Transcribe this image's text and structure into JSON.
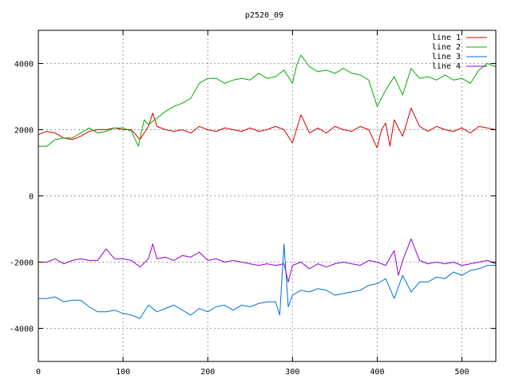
{
  "chart_data": {
    "type": "line",
    "title": "p2520_09",
    "xlabel": "",
    "ylabel": "",
    "xlim": [
      0,
      540
    ],
    "ylim": [
      -5000,
      5000
    ],
    "x_ticks": [
      0,
      100,
      200,
      300,
      400,
      500
    ],
    "y_ticks": [
      -4000,
      -2000,
      0,
      2000,
      4000
    ],
    "x_tick_labels": [
      "0",
      "100",
      "200",
      "300",
      "400",
      "500"
    ],
    "y_tick_labels": [
      "-4000",
      "-2000",
      "0",
      "2000",
      "4000"
    ],
    "grid": true,
    "legend_position": "top-right",
    "series": [
      {
        "name": "line 1",
        "color": "#d40000",
        "x": [
          0,
          10,
          20,
          30,
          40,
          50,
          60,
          70,
          80,
          90,
          100,
          110,
          120,
          130,
          135,
          140,
          150,
          160,
          170,
          180,
          190,
          200,
          210,
          220,
          230,
          240,
          250,
          260,
          270,
          280,
          290,
          300,
          310,
          320,
          330,
          340,
          350,
          360,
          370,
          380,
          390,
          400,
          405,
          410,
          415,
          420,
          430,
          440,
          450,
          460,
          470,
          480,
          490,
          500,
          510,
          520,
          530,
          540
        ],
        "y": [
          1850,
          1950,
          1900,
          1750,
          1700,
          1800,
          1950,
          2000,
          2000,
          2050,
          2000,
          2000,
          1700,
          2100,
          2500,
          2100,
          2000,
          1950,
          2000,
          1900,
          2100,
          2000,
          1950,
          2050,
          2000,
          1950,
          2050,
          1950,
          2000,
          2100,
          2000,
          1600,
          2450,
          1900,
          2050,
          1900,
          2100,
          2000,
          1950,
          2100,
          2000,
          1450,
          2000,
          2200,
          1500,
          2300,
          1800,
          2650,
          2100,
          1950,
          2100,
          2000,
          1950,
          2050,
          1900,
          2100,
          2050,
          2000
        ]
      },
      {
        "name": "line 2",
        "color": "#00b000",
        "x": [
          0,
          10,
          20,
          30,
          40,
          50,
          60,
          70,
          80,
          90,
          100,
          110,
          118,
          125,
          130,
          140,
          150,
          160,
          170,
          180,
          190,
          200,
          210,
          220,
          230,
          240,
          250,
          260,
          270,
          280,
          290,
          300,
          305,
          310,
          320,
          330,
          340,
          350,
          360,
          370,
          380,
          390,
          400,
          410,
          420,
          430,
          440,
          450,
          460,
          470,
          480,
          490,
          500,
          510,
          520,
          530,
          540
        ],
        "y": [
          1500,
          1500,
          1700,
          1750,
          1750,
          1900,
          2050,
          1900,
          1950,
          2050,
          2050,
          1950,
          1500,
          2300,
          2150,
          2350,
          2550,
          2700,
          2800,
          2950,
          3400,
          3550,
          3550,
          3400,
          3500,
          3550,
          3500,
          3700,
          3550,
          3600,
          3800,
          3400,
          3950,
          4250,
          3900,
          3750,
          3800,
          3700,
          3850,
          3700,
          3650,
          3500,
          2700,
          3200,
          3600,
          3050,
          3850,
          3550,
          3600,
          3500,
          3650,
          3500,
          3550,
          3400,
          3800,
          4000,
          3900
        ]
      },
      {
        "name": "line 3",
        "color": "#0070e0",
        "x": [
          0,
          10,
          20,
          30,
          40,
          50,
          60,
          70,
          80,
          90,
          100,
          110,
          120,
          130,
          140,
          150,
          160,
          170,
          180,
          190,
          200,
          210,
          220,
          230,
          240,
          250,
          260,
          270,
          280,
          285,
          290,
          295,
          300,
          310,
          320,
          330,
          340,
          350,
          360,
          370,
          380,
          390,
          400,
          410,
          420,
          430,
          440,
          450,
          460,
          470,
          480,
          490,
          500,
          510,
          520,
          530,
          540
        ],
        "y": [
          -3100,
          -3100,
          -3050,
          -3200,
          -3150,
          -3150,
          -3350,
          -3500,
          -3500,
          -3450,
          -3550,
          -3600,
          -3700,
          -3300,
          -3500,
          -3400,
          -3300,
          -3450,
          -3600,
          -3400,
          -3500,
          -3350,
          -3300,
          -3450,
          -3300,
          -3350,
          -3250,
          -3200,
          -3200,
          -3600,
          -1450,
          -3350,
          -3000,
          -2850,
          -2900,
          -2800,
          -2850,
          -3000,
          -2950,
          -2900,
          -2850,
          -2700,
          -2650,
          -2500,
          -3100,
          -2400,
          -2900,
          -2600,
          -2600,
          -2450,
          -2500,
          -2300,
          -2400,
          -2250,
          -2200,
          -2100,
          -2100
        ]
      },
      {
        "name": "line 4",
        "color": "#9400d3",
        "x": [
          0,
          10,
          20,
          30,
          40,
          50,
          60,
          70,
          80,
          90,
          100,
          110,
          120,
          130,
          135,
          140,
          150,
          160,
          170,
          180,
          190,
          200,
          210,
          220,
          230,
          240,
          250,
          260,
          270,
          280,
          290,
          295,
          300,
          310,
          320,
          330,
          340,
          350,
          360,
          370,
          380,
          390,
          400,
          410,
          420,
          425,
          430,
          440,
          450,
          460,
          470,
          480,
          490,
          500,
          510,
          520,
          530,
          540
        ],
        "y": [
          -2000,
          -2000,
          -1900,
          -2050,
          -1950,
          -1900,
          -1950,
          -1950,
          -1600,
          -1900,
          -1900,
          -1950,
          -2150,
          -1900,
          -1450,
          -1900,
          -1850,
          -1950,
          -1800,
          -1850,
          -1700,
          -1950,
          -1900,
          -2000,
          -1950,
          -2000,
          -2050,
          -2100,
          -2050,
          -2100,
          -2050,
          -2600,
          -2100,
          -2000,
          -2200,
          -2050,
          -2150,
          -2050,
          -2000,
          -2050,
          -2100,
          -1950,
          -2000,
          -2100,
          -1650,
          -2400,
          -1950,
          -1300,
          -1950,
          -2050,
          -2000,
          -2050,
          -2000,
          -2100,
          -2050,
          -2000,
          -1950,
          -2050
        ]
      }
    ]
  }
}
